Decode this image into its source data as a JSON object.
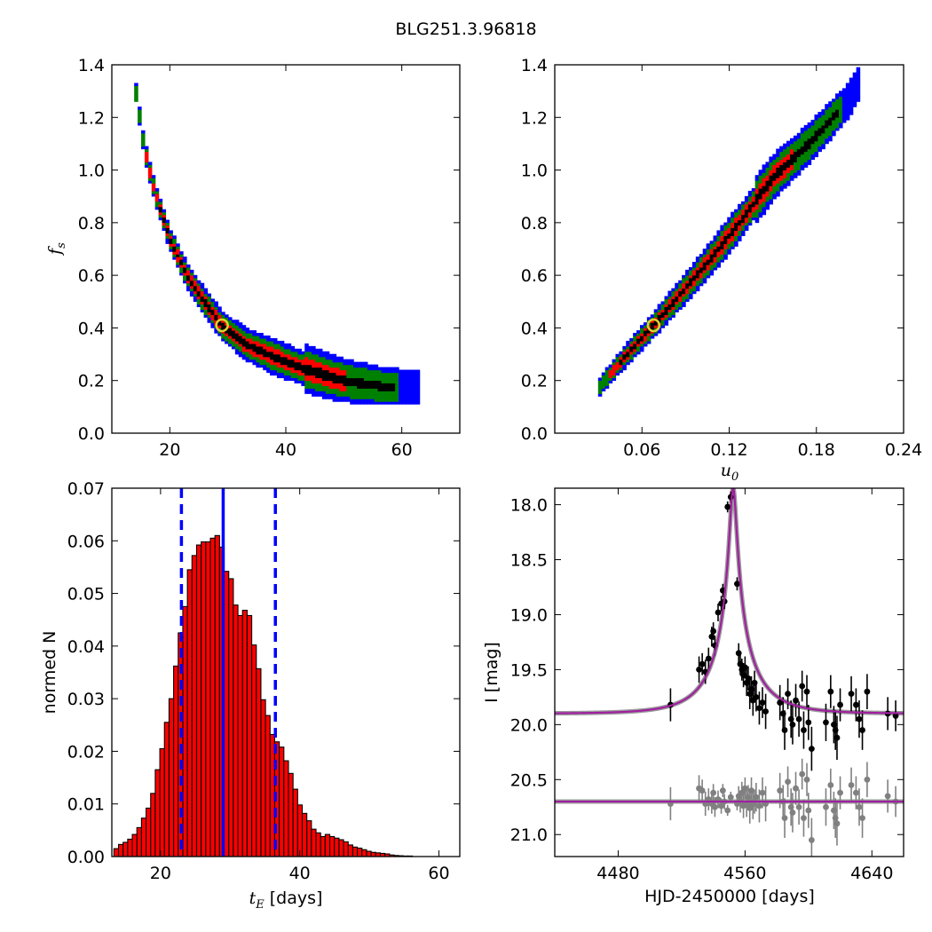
{
  "figure": {
    "title": "BLG251.3.96818"
  },
  "chart_data": [
    {
      "id": "p1",
      "type": "heatmap",
      "title": "",
      "xlabel": "",
      "ylabel": "f_s",
      "xlim": [
        10,
        70
      ],
      "ylim": [
        0.0,
        1.4
      ],
      "xticks": [
        "20",
        "40",
        "60"
      ],
      "yticks": [
        "0.0",
        "0.2",
        "0.4",
        "0.6",
        "0.8",
        "1.0",
        "1.2",
        "1.4"
      ],
      "best_fit": {
        "x": 29,
        "y": 0.41
      },
      "region_colors": {
        "outer": "#0000ff",
        "middle": "#008000",
        "inner": "#ff0000",
        "core": "#000000"
      },
      "ridge": [
        [
          14,
          1.32
        ],
        [
          15.5,
          1.1
        ],
        [
          17,
          0.95
        ],
        [
          20,
          0.74
        ],
        [
          23,
          0.6
        ],
        [
          26,
          0.5
        ],
        [
          29,
          0.41
        ],
        [
          33,
          0.34
        ],
        [
          38,
          0.29
        ],
        [
          44,
          0.24
        ],
        [
          50,
          0.2
        ],
        [
          56,
          0.18
        ],
        [
          63,
          0.17
        ]
      ]
    },
    {
      "id": "p2",
      "type": "heatmap",
      "title": "",
      "xlabel": "u_0",
      "ylabel": "",
      "xlim": [
        0.0,
        0.24
      ],
      "ylim": [
        0.0,
        1.4
      ],
      "xticks": [
        "0.06",
        "0.12",
        "0.18",
        "0.24"
      ],
      "yticks": [
        "0.0",
        "0.2",
        "0.4",
        "0.6",
        "0.8",
        "1.0",
        "1.2",
        "1.4"
      ],
      "best_fit": {
        "x": 0.068,
        "y": 0.41
      },
      "region_colors": {
        "outer": "#0000ff",
        "middle": "#008000",
        "inner": "#ff0000",
        "core": "#000000"
      },
      "ridge": [
        [
          0.03,
          0.17
        ],
        [
          0.05,
          0.3
        ],
        [
          0.068,
          0.41
        ],
        [
          0.09,
          0.55
        ],
        [
          0.11,
          0.68
        ],
        [
          0.13,
          0.82
        ],
        [
          0.15,
          0.97
        ],
        [
          0.175,
          1.1
        ],
        [
          0.2,
          1.25
        ],
        [
          0.21,
          1.33
        ]
      ]
    },
    {
      "id": "p3",
      "type": "bar",
      "title": "",
      "xlabel": "t_E [days]",
      "ylabel": "normed N",
      "xlim": [
        13,
        63
      ],
      "ylim": [
        0.0,
        0.07
      ],
      "xticks": [
        "20",
        "40",
        "60"
      ],
      "yticks": [
        "0.00",
        "0.01",
        "0.02",
        "0.03",
        "0.04",
        "0.05",
        "0.06",
        "0.07"
      ],
      "bin_start": 13.3,
      "bin_width": 0.66,
      "values": [
        0.0015,
        0.0023,
        0.0027,
        0.0033,
        0.0042,
        0.0055,
        0.0073,
        0.0092,
        0.012,
        0.0165,
        0.0205,
        0.0255,
        0.03,
        0.0362,
        0.0425,
        0.0475,
        0.0545,
        0.0572,
        0.0592,
        0.0598,
        0.0598,
        0.0605,
        0.061,
        0.0588,
        0.0542,
        0.0528,
        0.0478,
        0.0458,
        0.0468,
        0.0458,
        0.0402,
        0.0357,
        0.0298,
        0.0268,
        0.0232,
        0.0218,
        0.0208,
        0.0182,
        0.0158,
        0.0128,
        0.0098,
        0.0082,
        0.0068,
        0.0052,
        0.0045,
        0.0038,
        0.0042,
        0.0038,
        0.0035,
        0.0032,
        0.0028,
        0.0022,
        0.0018,
        0.0016,
        0.0013,
        0.001,
        0.0008,
        0.0007,
        0.0006,
        0.0005,
        0.0003,
        0.0002,
        0.00015,
        0.0001,
        0.0001
      ],
      "bar_color": "#ff0000",
      "median_line": 29,
      "quantile_lines": [
        23,
        36.5
      ],
      "line_color": "#0000ff"
    },
    {
      "id": "p4",
      "type": "scatter",
      "title": "",
      "xlabel": "HJD-2450000 [days]",
      "ylabel": "I [mag]",
      "xlim": [
        4440,
        4660
      ],
      "ylim": [
        21.2,
        17.85
      ],
      "xticks": [
        "4480",
        "4560",
        "4640"
      ],
      "yticks": [
        "18.0",
        "18.5",
        "19.0",
        "19.5",
        "20.0",
        "20.5",
        "21.0"
      ],
      "model": {
        "t0": 4552.5,
        "u0": 0.068,
        "tE": 29,
        "baseline": 19.9,
        "fs": 0.41
      },
      "residual_baseline": 20.7,
      "model_color": "#a020a0",
      "series": [
        {
          "name": "",
          "color": "#000000",
          "points": [
            [
              4513,
              19.82,
              0.15
            ],
            [
              4531,
              19.5,
              0.12
            ],
            [
              4533,
              19.45,
              0.1
            ],
            [
              4535,
              19.52,
              0.11
            ],
            [
              4537,
              19.4,
              0.1
            ],
            [
              4539,
              19.2,
              0.09
            ],
            [
              4540,
              19.15,
              0.08
            ],
            [
              4541,
              19.28,
              0.09
            ],
            [
              4543,
              18.98,
              0.08
            ],
            [
              4545,
              18.9,
              0.07
            ],
            [
              4546,
              18.78,
              0.06
            ],
            [
              4547,
              18.88,
              0.07
            ],
            [
              4549,
              18.02,
              0.05
            ],
            [
              4551,
              17.93,
              0.05
            ],
            [
              4555,
              18.72,
              0.06
            ],
            [
              4556,
              19.35,
              0.09
            ],
            [
              4557,
              19.45,
              0.1
            ],
            [
              4558,
              19.5,
              0.1
            ],
            [
              4559,
              19.55,
              0.11
            ],
            [
              4560,
              19.48,
              0.1
            ],
            [
              4561,
              19.62,
              0.12
            ],
            [
              4562,
              19.58,
              0.11
            ],
            [
              4563,
              19.72,
              0.14
            ],
            [
              4564,
              19.68,
              0.12
            ],
            [
              4565,
              19.78,
              0.14
            ],
            [
              4566,
              19.62,
              0.11
            ],
            [
              4567,
              19.75,
              0.13
            ],
            [
              4569,
              19.85,
              0.15
            ],
            [
              4571,
              19.8,
              0.14
            ],
            [
              4573,
              19.88,
              0.16
            ],
            [
              4582,
              19.8,
              0.16
            ],
            [
              4584,
              19.9,
              0.15
            ],
            [
              4585,
              20.05,
              0.18
            ],
            [
              4587,
              19.72,
              0.14
            ],
            [
              4589,
              19.95,
              0.17
            ],
            [
              4590,
              20.0,
              0.18
            ],
            [
              4592,
              19.78,
              0.15
            ],
            [
              4594,
              19.95,
              0.16
            ],
            [
              4596,
              19.65,
              0.14
            ],
            [
              4597,
              20.05,
              0.17
            ],
            [
              4599,
              19.7,
              0.15
            ],
            [
              4600,
              19.98,
              0.16
            ],
            [
              4602,
              20.22,
              0.2
            ],
            [
              4611,
              19.98,
              0.17
            ],
            [
              4614,
              19.7,
              0.15
            ],
            [
              4616,
              20.0,
              0.17
            ],
            [
              4617,
              20.05,
              0.18
            ],
            [
              4618,
              20.12,
              0.2
            ],
            [
              4620,
              19.82,
              0.15
            ],
            [
              4627,
              19.72,
              0.16
            ],
            [
              4630,
              19.82,
              0.15
            ],
            [
              4632,
              19.95,
              0.17
            ],
            [
              4634,
              20.05,
              0.18
            ],
            [
              4637,
              19.7,
              0.16
            ],
            [
              4650,
              19.9,
              0.15
            ],
            [
              4655,
              19.92,
              0.14
            ]
          ]
        },
        {
          "name": "",
          "color": "#808080",
          "points": [
            [
              4513,
              20.72,
              0.15
            ],
            [
              4531,
              20.58,
              0.12
            ],
            [
              4533,
              20.6,
              0.1
            ],
            [
              4535,
              20.72,
              0.11
            ],
            [
              4537,
              20.68,
              0.1
            ],
            [
              4539,
              20.72,
              0.09
            ],
            [
              4540,
              20.62,
              0.08
            ],
            [
              4541,
              20.75,
              0.09
            ],
            [
              4543,
              20.68,
              0.08
            ],
            [
              4545,
              20.74,
              0.07
            ],
            [
              4546,
              20.6,
              0.06
            ],
            [
              4547,
              20.7,
              0.07
            ],
            [
              4549,
              20.78,
              0.05
            ],
            [
              4551,
              20.66,
              0.05
            ],
            [
              4555,
              20.72,
              0.06
            ],
            [
              4556,
              20.65,
              0.09
            ],
            [
              4557,
              20.7,
              0.1
            ],
            [
              4558,
              20.62,
              0.1
            ],
            [
              4559,
              20.74,
              0.11
            ],
            [
              4560,
              20.58,
              0.1
            ],
            [
              4561,
              20.72,
              0.12
            ],
            [
              4562,
              20.66,
              0.11
            ],
            [
              4563,
              20.76,
              0.14
            ],
            [
              4564,
              20.6,
              0.12
            ],
            [
              4565,
              20.72,
              0.14
            ],
            [
              4566,
              20.7,
              0.11
            ],
            [
              4567,
              20.66,
              0.13
            ],
            [
              4569,
              20.74,
              0.15
            ],
            [
              4571,
              20.62,
              0.14
            ],
            [
              4573,
              20.72,
              0.16
            ],
            [
              4582,
              20.6,
              0.16
            ],
            [
              4584,
              20.7,
              0.15
            ],
            [
              4585,
              20.85,
              0.18
            ],
            [
              4587,
              20.52,
              0.14
            ],
            [
              4589,
              20.75,
              0.17
            ],
            [
              4590,
              20.8,
              0.18
            ],
            [
              4592,
              20.58,
              0.15
            ],
            [
              4594,
              20.75,
              0.16
            ],
            [
              4596,
              20.45,
              0.14
            ],
            [
              4597,
              20.85,
              0.17
            ],
            [
              4599,
              20.5,
              0.15
            ],
            [
              4600,
              20.78,
              0.16
            ],
            [
              4602,
              21.05,
              0.2
            ],
            [
              4611,
              20.75,
              0.17
            ],
            [
              4614,
              20.55,
              0.15
            ],
            [
              4616,
              20.78,
              0.17
            ],
            [
              4617,
              20.85,
              0.18
            ],
            [
              4618,
              20.9,
              0.2
            ],
            [
              4620,
              20.62,
              0.15
            ],
            [
              4627,
              20.55,
              0.16
            ],
            [
              4630,
              20.62,
              0.15
            ],
            [
              4632,
              20.75,
              0.17
            ],
            [
              4634,
              20.85,
              0.18
            ],
            [
              4637,
              20.5,
              0.16
            ],
            [
              4650,
              20.65,
              0.15
            ],
            [
              4655,
              20.7,
              0.14
            ]
          ]
        }
      ]
    }
  ]
}
